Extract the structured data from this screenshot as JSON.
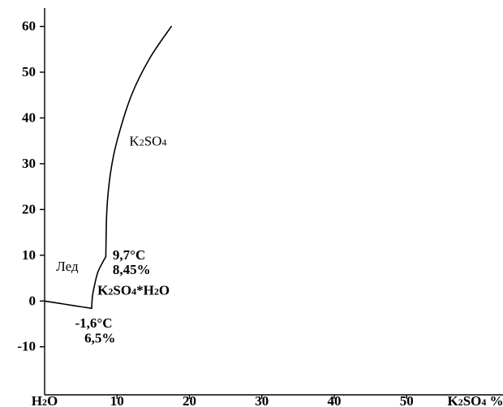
{
  "chart_data": {
    "type": "line",
    "title": "",
    "xlabel": "",
    "ylabel": "",
    "xlim": [
      0,
      63.3
    ],
    "ylim": [
      -20.5,
      64
    ],
    "grid": false,
    "x_ticks": [
      {
        "value": 0,
        "parts": [
          {
            "t": "H"
          },
          {
            "t": "2",
            "sub": true
          },
          {
            "t": "O"
          }
        ]
      },
      {
        "value": 10,
        "parts": [
          {
            "t": "10"
          }
        ]
      },
      {
        "value": 20,
        "parts": [
          {
            "t": "20"
          }
        ]
      },
      {
        "value": 30,
        "parts": [
          {
            "t": "30"
          }
        ]
      },
      {
        "value": 40,
        "parts": [
          {
            "t": "40"
          }
        ]
      },
      {
        "value": 50,
        "parts": [
          {
            "t": "50"
          }
        ]
      }
    ],
    "x_end_label": {
      "value": 59.5,
      "parts": [
        {
          "t": "K"
        },
        {
          "t": "2",
          "sub": true
        },
        {
          "t": "SO"
        },
        {
          "t": "4",
          "sub": true
        },
        {
          "t": " %"
        }
      ]
    },
    "y_ticks": [
      -10,
      0,
      10,
      20,
      30,
      40,
      50,
      60
    ],
    "series": [
      {
        "points": [
          [
            0,
            0
          ],
          [
            2,
            -0.5
          ],
          [
            4,
            -1
          ],
          [
            6.5,
            -1.6
          ]
        ]
      },
      {
        "points": [
          [
            6.5,
            -1.6
          ],
          [
            6.6,
            1
          ],
          [
            6.9,
            3.5
          ],
          [
            7.4,
            6.5
          ],
          [
            8.45,
            9.7
          ]
        ]
      },
      {
        "points": [
          [
            8.45,
            9.7
          ],
          [
            8.6,
            20
          ],
          [
            9.1,
            28
          ],
          [
            10,
            35
          ],
          [
            12,
            45
          ],
          [
            14.5,
            53
          ],
          [
            17.5,
            60
          ]
        ]
      }
    ],
    "annotations": [
      {
        "x": 11.7,
        "y": 34,
        "bold": false,
        "parts": [
          {
            "t": "K"
          },
          {
            "t": "2",
            "sub": true
          },
          {
            "t": "SO"
          },
          {
            "t": "4",
            "sub": true
          }
        ]
      },
      {
        "x": 1.6,
        "y": 6.6,
        "bold": false,
        "parts": [
          {
            "t": "Лед"
          }
        ]
      },
      {
        "x": 9.4,
        "y": 9.1,
        "bold": true,
        "parts": [
          {
            "t": "9,7°C"
          }
        ]
      },
      {
        "x": 9.4,
        "y": 5.9,
        "bold": true,
        "parts": [
          {
            "t": "8,45%"
          }
        ]
      },
      {
        "x": 7.3,
        "y": 1.4,
        "bold": true,
        "parts": [
          {
            "t": "K"
          },
          {
            "t": "2",
            "sub": true
          },
          {
            "t": "SO"
          },
          {
            "t": "4",
            "sub": true
          },
          {
            "t": "*H"
          },
          {
            "t": "2",
            "sub": true
          },
          {
            "t": "O"
          }
        ]
      },
      {
        "x": 4.2,
        "y": -5.8,
        "bold": true,
        "parts": [
          {
            "t": "-1,6°C"
          }
        ]
      },
      {
        "x": 5.5,
        "y": -9.1,
        "bold": true,
        "parts": [
          {
            "t": "6,5%"
          }
        ]
      }
    ]
  }
}
